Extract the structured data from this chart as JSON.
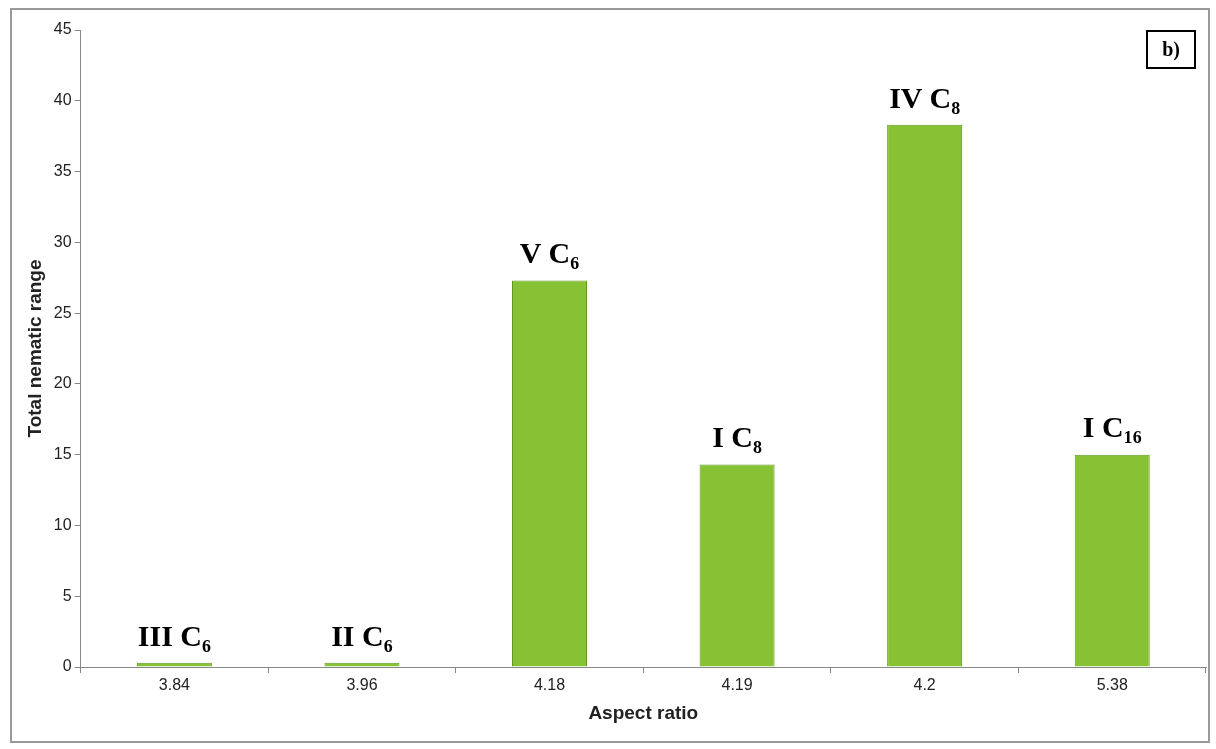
{
  "chart_data": {
    "type": "bar",
    "xlabel": "Aspect ratio",
    "ylabel": "Total nematic range",
    "categories": [
      "3.84",
      "3.96",
      "4.18",
      "4.19",
      "4.2",
      "5.38"
    ],
    "values": [
      0.3,
      0.3,
      27.3,
      14.3,
      38.3,
      15
    ],
    "color": "#86c234",
    "ylim": [
      0,
      45
    ],
    "yticks": [
      0,
      5,
      10,
      15,
      20,
      25,
      30,
      35,
      40,
      45
    ],
    "grid": false,
    "legend": false,
    "annotations": [
      {
        "text": "III C₆",
        "x": "3.84",
        "y": 0.3
      },
      {
        "text": "II C₆",
        "x": "3.96",
        "y": 0.3
      },
      {
        "text": "V C₆",
        "x": "4.18",
        "y": 27.3
      },
      {
        "text": "I C₈",
        "x": "4.19",
        "y": 14.3
      },
      {
        "text": "IV C₈",
        "x": "4.2",
        "y": 38.3
      },
      {
        "text": "I C₁₆",
        "x": "5.38",
        "y": 15
      },
      "b)"
    ]
  }
}
